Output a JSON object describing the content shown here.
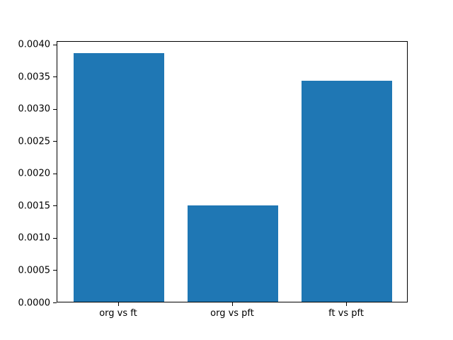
{
  "figure": {
    "background_color": "#ffffff",
    "frame_color": "#000000"
  },
  "chart_data": {
    "type": "bar",
    "title": "",
    "xlabel": "",
    "ylabel": "",
    "categories": [
      "org vs ft",
      "org vs pft",
      "ft vs pft"
    ],
    "values": [
      0.00386,
      0.00149,
      0.00343
    ],
    "bar_color": "#1f77b4",
    "ylim": [
      0,
      0.004052
    ],
    "yticks": {
      "values": [
        0.0,
        0.0005,
        0.001,
        0.0015,
        0.002,
        0.0025,
        0.003,
        0.0035,
        0.004
      ],
      "labels": [
        "0.0000",
        "0.0005",
        "0.0010",
        "0.0015",
        "0.0020",
        "0.0025",
        "0.0030",
        "0.0035",
        "0.0040"
      ]
    },
    "grid": false,
    "legend": null
  }
}
